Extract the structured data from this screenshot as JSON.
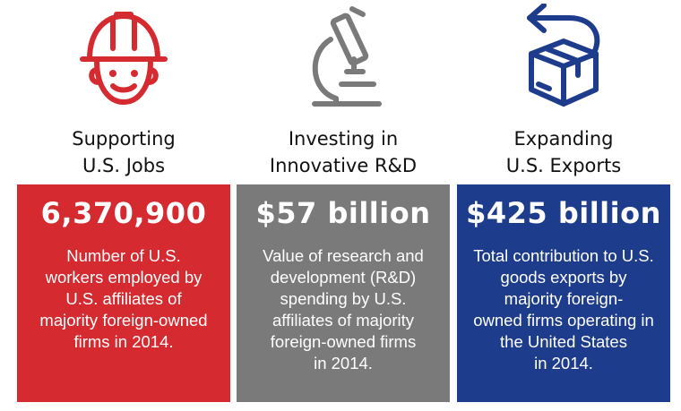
{
  "colors": {
    "red": "#d42a30",
    "gray": "#7a7a7a",
    "blue": "#1e3c8c"
  },
  "columns": [
    {
      "icon": "hardhat-worker-icon",
      "heading": [
        "Supporting",
        "U.S. Jobs"
      ],
      "value": "6,370,900",
      "desc": [
        "Number of U.S.",
        "workers employed by",
        "U.S. affiliates of",
        "majority foreign-owned",
        "firms in 2014."
      ]
    },
    {
      "icon": "microscope-icon",
      "heading": [
        "Investing in",
        "Innovative R&D"
      ],
      "value": "$57 billion",
      "desc": [
        "Value of research and",
        "development (R&D)",
        "spending by U.S.",
        "affiliates of majority",
        "foreign-owned firms",
        "in 2014."
      ]
    },
    {
      "icon": "box-export-icon",
      "heading": [
        "Expanding",
        "U.S. Exports"
      ],
      "value": "$425 billion",
      "desc": [
        "Total contribution to U.S.",
        "goods exports by",
        "majority foreign-",
        "owned firms operating in",
        "the United States",
        "in 2014."
      ]
    }
  ]
}
